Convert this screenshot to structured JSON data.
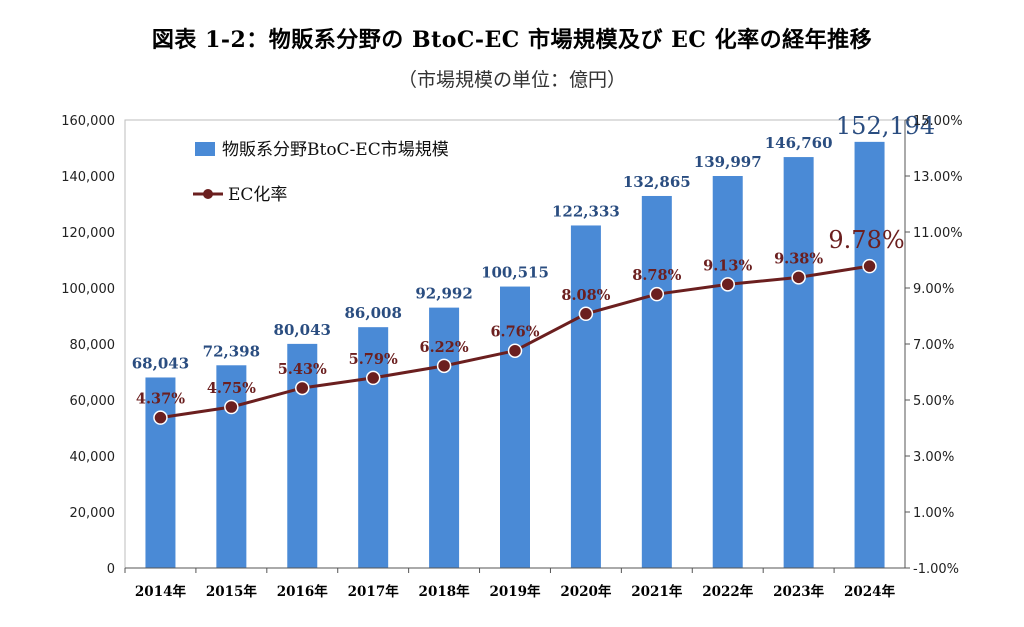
{
  "title": "図表 1-2：物販系分野の BtoC-EC 市場規模及び EC 化率の経年推移",
  "subtitle": "（市場規模の単位：億円）",
  "colors": {
    "bar": "#4a8ad6",
    "line": "#6b1f1f",
    "marker": "#6b1f1f",
    "bar_label": "#2a4d80"
  },
  "chart_data": {
    "type": "bar",
    "categories": [
      "2014年",
      "2015年",
      "2016年",
      "2017年",
      "2018年",
      "2019年",
      "2020年",
      "2021年",
      "2022年",
      "2023年",
      "2024年"
    ],
    "series": [
      {
        "name": "物販系分野BtoC-EC市場規模",
        "type": "bar",
        "axis": "left",
        "values": [
          68043,
          72398,
          80043,
          86008,
          92992,
          100515,
          122333,
          132865,
          139997,
          146760,
          152194
        ],
        "labels": [
          "68,043",
          "72,398",
          "80,043",
          "86,008",
          "92,992",
          "100,515",
          "122,333",
          "132,865",
          "139,997",
          "146,760",
          "152,194"
        ]
      },
      {
        "name": "EC化率",
        "type": "line",
        "axis": "right",
        "values": [
          4.37,
          4.75,
          5.43,
          5.79,
          6.22,
          6.76,
          8.08,
          8.78,
          9.13,
          9.38,
          9.78
        ],
        "labels": [
          "4.37%",
          "4.75%",
          "5.43%",
          "5.79%",
          "6.22%",
          "6.76%",
          "8.08%",
          "8.78%",
          "9.13%",
          "9.38%",
          "9.78%"
        ]
      }
    ],
    "y_left": {
      "lim": [
        0,
        160000
      ],
      "ticks": [
        0,
        20000,
        40000,
        60000,
        80000,
        100000,
        120000,
        140000,
        160000
      ],
      "tick_labels": [
        "0",
        "20,000",
        "40,000",
        "60,000",
        "80,000",
        "100,000",
        "120,000",
        "140,000",
        "160,000"
      ]
    },
    "y_right": {
      "lim": [
        -1,
        15
      ],
      "ticks": [
        -1,
        1,
        3,
        5,
        7,
        9,
        11,
        13,
        15
      ],
      "tick_labels": [
        "-1.00%",
        "1.00%",
        "3.00%",
        "5.00%",
        "7.00%",
        "9.00%",
        "11.00%",
        "13.00%",
        "15.00%"
      ]
    },
    "legend_position": "top-left",
    "grid": false
  }
}
